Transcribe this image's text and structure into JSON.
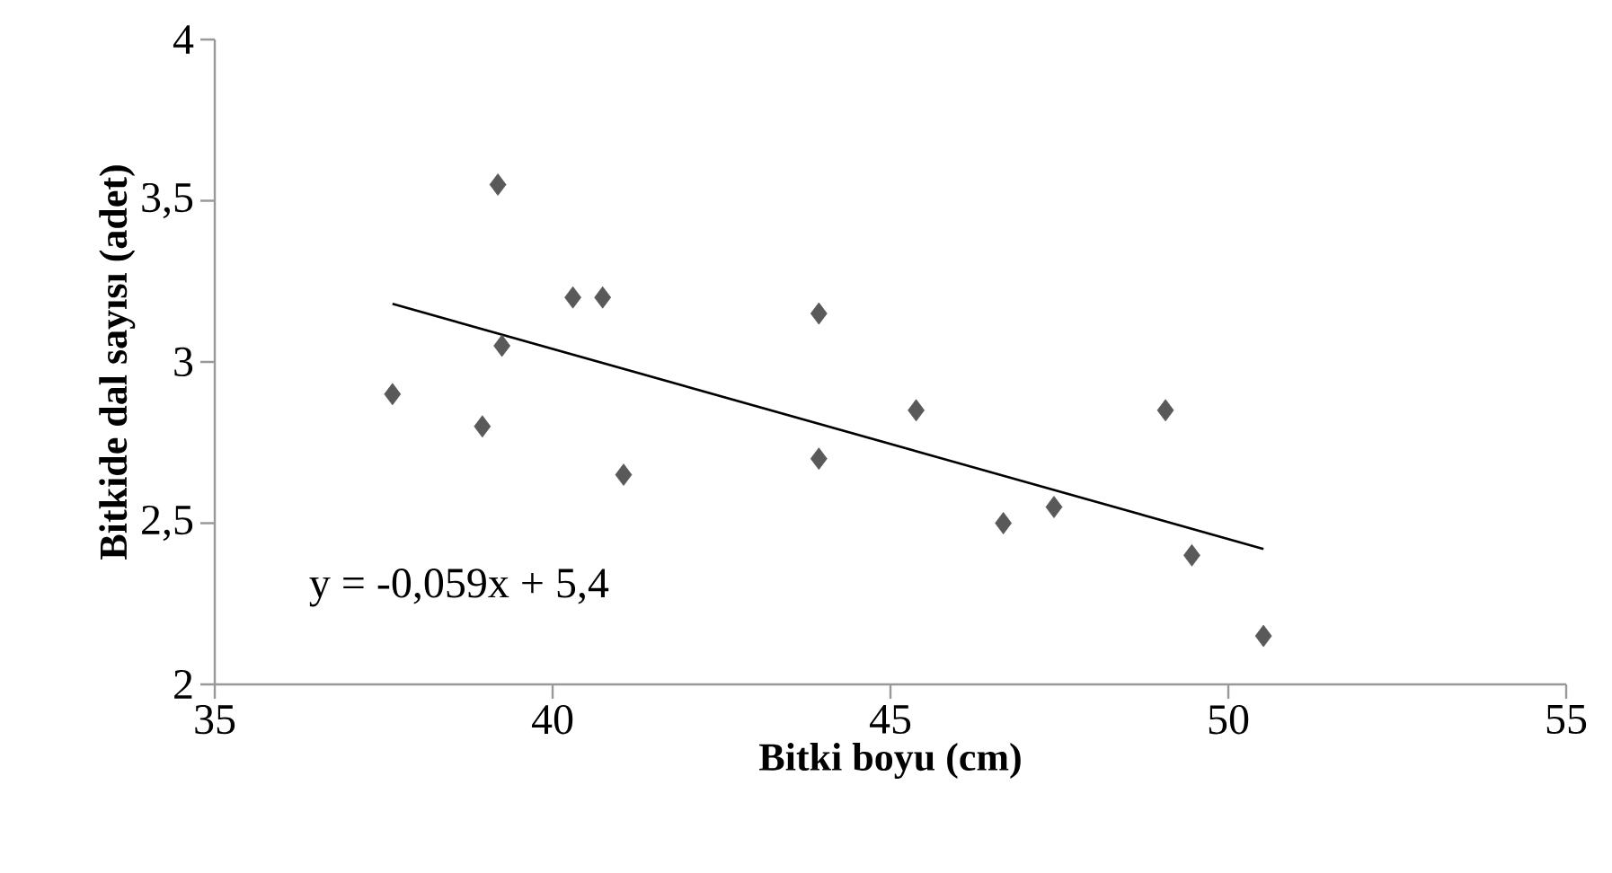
{
  "chart_data": {
    "type": "scatter",
    "xlabel": "Bitki boyu (cm)",
    "ylabel": "Bitkide  dal sayısı (adet)",
    "xlim": [
      35,
      55
    ],
    "xticks": [
      35,
      40,
      45,
      50,
      55
    ],
    "ylim": [
      2,
      4
    ],
    "yticks": [
      2,
      {
        "value": 2.5,
        "label": "2,5"
      },
      3,
      {
        "value": 3.5,
        "label": "3,5"
      },
      4
    ],
    "grid": false,
    "legend": false,
    "marker": "diamond",
    "annotations": [
      "y = -0,059x + 5,4"
    ],
    "series": [
      {
        "color": "#595959",
        "x": [
          37.63,
          38.96,
          39.19,
          39.25,
          40.3,
          40.74,
          41.05,
          43.94,
          43.94,
          45.38,
          46.67,
          47.42,
          49.07,
          49.46,
          50.52
        ],
        "values": [
          2.9,
          2.8,
          3.55,
          3.05,
          3.2,
          3.2,
          2.65,
          3.15,
          2.7,
          2.85,
          2.5,
          2.55,
          2.85,
          2.4,
          2.15
        ]
      },
      {
        "type": "line",
        "marker": "none",
        "color": "#000000",
        "x": [
          37.63,
          50.52
        ],
        "values": [
          3.18,
          2.42
        ]
      }
    ]
  }
}
